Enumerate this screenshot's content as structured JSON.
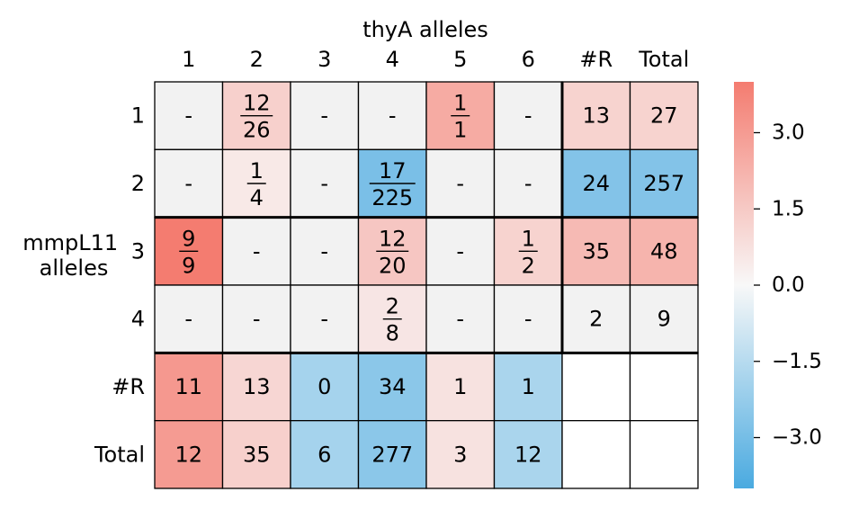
{
  "chart_data": {
    "type": "heatmap",
    "top_axis_label": "thyA alleles",
    "left_axis_label": [
      "mmpL11",
      "alleles"
    ],
    "columns": [
      "1",
      "2",
      "3",
      "4",
      "5",
      "6",
      "#R",
      "Total"
    ],
    "rows": [
      "1",
      "2",
      "3",
      "4",
      "#R",
      "Total"
    ],
    "cells": [
      [
        {
          "text": "-"
        },
        {
          "num": "12",
          "den": "26"
        },
        {
          "text": "-"
        },
        {
          "text": "-"
        },
        {
          "num": "1",
          "den": "1"
        },
        {
          "text": "-"
        },
        {
          "text": "13"
        },
        {
          "text": "27"
        }
      ],
      [
        {
          "text": "-"
        },
        {
          "num": "1",
          "den": "4"
        },
        {
          "text": "-"
        },
        {
          "num": "17",
          "den": "225"
        },
        {
          "text": "-"
        },
        {
          "text": "-"
        },
        {
          "text": "24"
        },
        {
          "text": "257"
        }
      ],
      [
        {
          "num": "9",
          "den": "9"
        },
        {
          "text": "-"
        },
        {
          "text": "-"
        },
        {
          "num": "12",
          "den": "20"
        },
        {
          "text": "-"
        },
        {
          "num": "1",
          "den": "2"
        },
        {
          "text": "35"
        },
        {
          "text": "48"
        }
      ],
      [
        {
          "text": "-"
        },
        {
          "text": "-"
        },
        {
          "text": "-"
        },
        {
          "num": "2",
          "den": "8"
        },
        {
          "text": "-"
        },
        {
          "text": "-"
        },
        {
          "text": "2"
        },
        {
          "text": "9"
        }
      ],
      [
        {
          "text": "11"
        },
        {
          "text": "13"
        },
        {
          "text": "0"
        },
        {
          "text": "34"
        },
        {
          "text": "1"
        },
        {
          "text": "1"
        },
        {
          "text": ""
        },
        {
          "text": ""
        }
      ],
      [
        {
          "text": "12"
        },
        {
          "text": "35"
        },
        {
          "text": "6"
        },
        {
          "text": "277"
        },
        {
          "text": "3"
        },
        {
          "text": "12"
        },
        {
          "text": ""
        },
        {
          "text": ""
        }
      ]
    ],
    "values": [
      [
        null,
        1.3,
        null,
        null,
        2.5,
        null,
        1.2,
        1.2
      ],
      [
        null,
        0.5,
        null,
        -2.9,
        null,
        null,
        -2.7,
        -2.7
      ],
      [
        4.2,
        null,
        null,
        1.6,
        null,
        1.2,
        2.0,
        2.2
      ],
      [
        null,
        null,
        null,
        0.6,
        null,
        null,
        null,
        null
      ],
      [
        3.1,
        1.1,
        -1.9,
        -2.5,
        0.7,
        -1.8,
        null,
        null
      ],
      [
        3.0,
        1.3,
        -1.9,
        -2.5,
        0.7,
        -1.8,
        null,
        null
      ]
    ],
    "blank_cells": [
      [
        4,
        6
      ],
      [
        4,
        7
      ],
      [
        5,
        6
      ],
      [
        5,
        7
      ]
    ],
    "colorbar": {
      "range": [
        -4.0,
        4.0
      ],
      "ticks": [
        3.0,
        1.5,
        0.0,
        -1.5,
        -3.0
      ],
      "tick_labels": [
        "3.0",
        "1.5",
        "0.0",
        "−1.5",
        "−3.0"
      ],
      "colors": {
        "negative": "#4aaae0",
        "zero": "#f8f8f8",
        "positive": "#f47c70"
      }
    },
    "missing_color": "#f2f2f2"
  }
}
